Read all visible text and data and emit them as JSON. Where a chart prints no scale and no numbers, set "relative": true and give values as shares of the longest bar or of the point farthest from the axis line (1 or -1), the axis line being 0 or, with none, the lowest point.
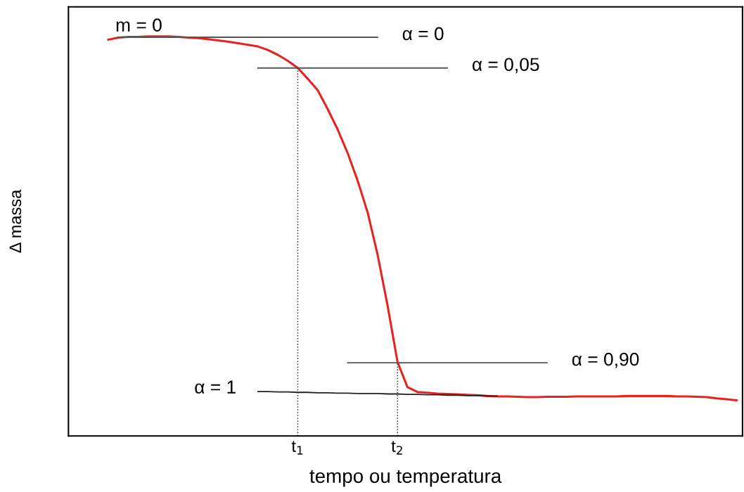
{
  "chart_data": {
    "type": "line",
    "relative": true,
    "xlabel": "tempo ou temperatura",
    "ylabel": "Δ massa",
    "grid": false,
    "legend": false,
    "marker": "none",
    "categories": [
      null,
      null,
      null,
      null,
      null,
      null,
      null,
      null,
      null,
      null,
      null,
      null,
      null,
      null,
      null,
      null,
      null,
      null,
      null,
      null,
      null,
      null,
      null,
      null,
      null,
      null,
      null,
      null,
      null,
      null,
      null,
      null,
      null,
      null,
      null,
      null,
      null,
      null,
      null,
      null,
      null,
      null,
      null,
      null,
      null,
      null,
      null,
      null,
      null,
      null,
      null,
      null,
      null,
      null,
      null,
      null,
      null,
      null,
      null,
      null,
      null,
      null,
      null,
      null,
      null,
      null,
      null,
      null
    ],
    "series": [
      {
        "color": "#e8231f",
        "values": [
          null,
          null,
          null,
          null,
          0.992,
          0.997,
          0.999,
          0.999,
          1,
          1,
          1,
          0.999,
          0.997,
          0.996,
          0.993,
          0.99,
          0.987,
          0.983,
          0.979,
          0.975,
          0.966,
          0.954,
          0.939,
          0.921,
          0.894,
          0.865,
          0.818,
          0.767,
          0.708,
          0.639,
          0.56,
          0.454,
          0.327,
          0.185,
          0.122,
          0.11,
          0.108,
          0.106,
          0.105,
          0.104,
          0.103,
          0.102,
          0.1,
          0.099,
          0.099,
          0.098,
          0.097,
          0.097,
          0.098,
          0.098,
          0.098,
          0.099,
          0.099,
          0.099,
          0.099,
          0.099,
          0.1,
          0.1,
          0.1,
          0.1,
          0.1,
          0.099,
          0.099,
          0.098,
          0.097,
          0.094,
          0.092,
          0.089
        ]
      },
      {
        "color": "#555555",
        "values": [
          null,
          null,
          null,
          null,
          null,
          0.998,
          0.998,
          0.998,
          0.998,
          0.998,
          0.998,
          0.998,
          0.998,
          0.998,
          0.998,
          0.998,
          0.998,
          0.998,
          0.998,
          0.998,
          0.998,
          0.998,
          0.998,
          0.998,
          0.998,
          0.998,
          0.998,
          0.998,
          0.998,
          0.998,
          0.998,
          0.998,
          null,
          null,
          null,
          null,
          null,
          null,
          null,
          null,
          null,
          null,
          null,
          null,
          null,
          null,
          null,
          null,
          null,
          null,
          null,
          null,
          null,
          null,
          null,
          null,
          null,
          null,
          null,
          null,
          null,
          null,
          null,
          null,
          null,
          null,
          null,
          null
        ]
      },
      {
        "color": "#555555",
        "values": [
          null,
          null,
          null,
          null,
          null,
          null,
          null,
          null,
          null,
          null,
          null,
          null,
          null,
          null,
          null,
          null,
          null,
          null,
          null,
          0.921,
          0.921,
          0.921,
          0.921,
          0.921,
          0.921,
          0.921,
          0.921,
          0.921,
          0.921,
          0.921,
          0.921,
          0.921,
          0.921,
          0.921,
          0.921,
          0.921,
          0.921,
          0.921,
          0.921,
          null,
          null,
          null,
          null,
          null,
          null,
          null,
          null,
          null,
          null,
          null,
          null,
          null,
          null,
          null,
          null,
          null,
          null,
          null,
          null,
          null,
          null,
          null,
          null,
          null,
          null,
          null,
          null,
          null
        ]
      },
      {
        "color": "#555555",
        "values": [
          null,
          null,
          null,
          null,
          null,
          null,
          null,
          null,
          null,
          null,
          null,
          null,
          null,
          null,
          null,
          null,
          null,
          null,
          null,
          null,
          null,
          null,
          null,
          null,
          null,
          null,
          null,
          null,
          0.183,
          0.183,
          0.183,
          0.183,
          0.183,
          0.183,
          0.183,
          0.183,
          0.183,
          0.183,
          0.183,
          0.183,
          0.183,
          0.183,
          0.183,
          0.183,
          0.183,
          0.183,
          0.183,
          0.183,
          0.183,
          null,
          null,
          null,
          null,
          null,
          null,
          null,
          null,
          null,
          null,
          null,
          null,
          null,
          null,
          null,
          null,
          null,
          null,
          null
        ]
      },
      {
        "color": "#222222",
        "values": [
          null,
          null,
          null,
          null,
          null,
          null,
          null,
          null,
          null,
          null,
          null,
          null,
          null,
          null,
          null,
          null,
          null,
          null,
          null,
          0.111,
          0.111,
          0.11,
          0.11,
          0.109,
          0.109,
          0.108,
          0.108,
          0.107,
          0.107,
          0.106,
          0.106,
          0.106,
          0.105,
          0.105,
          0.104,
          0.104,
          0.103,
          0.103,
          0.102,
          0.102,
          0.101,
          0.101,
          0.1,
          0.1,
          null,
          null,
          null,
          null,
          null,
          null,
          null,
          null,
          null,
          null,
          null,
          null,
          null,
          null,
          null,
          null,
          null,
          null,
          null,
          null,
          null,
          null,
          null,
          null
        ]
      }
    ],
    "annotations": [
      "m = 0",
      "α = 0",
      "α = 0,05",
      "α = 0,90",
      "α = 1",
      "t$_{1}$",
      "t$_{2}$"
    ]
  }
}
